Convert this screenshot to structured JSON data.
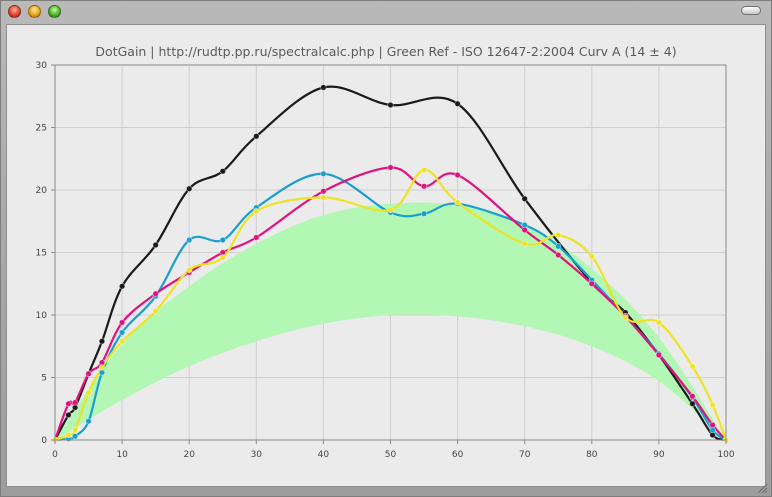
{
  "window": {
    "colors": {
      "close": "#e2452f",
      "minimize": "#e8a51c",
      "zoom": "#4fb52a"
    }
  },
  "chart_data": {
    "type": "line",
    "title": "DotGain | http://rudtp.pp.ru/spectralcalc.php | Green Ref - ISO 12647-2:2004 Curv A (14 ± 4)",
    "xlim": [
      0,
      100
    ],
    "ylim": [
      0,
      30
    ],
    "x_ticks": [
      "0",
      "10",
      "20",
      "30",
      "40",
      "50",
      "60",
      "70",
      "80",
      "90",
      "100"
    ],
    "y_ticks": [
      "0",
      "5",
      "10",
      "15",
      "20",
      "25",
      "30"
    ],
    "grid": true,
    "band": {
      "color": "#b2f7b4",
      "x": [
        0,
        10,
        20,
        30,
        40,
        50,
        60,
        70,
        80,
        90,
        100
      ],
      "lower": [
        0,
        3.2,
        5.9,
        7.9,
        9.3,
        10.0,
        9.9,
        9.1,
        7.5,
        4.7,
        0
      ],
      "upper": [
        0,
        7.7,
        12.3,
        15.7,
        18.0,
        18.9,
        18.8,
        17.3,
        13.7,
        8.2,
        0
      ]
    },
    "series": [
      {
        "color": "#1a1a1a",
        "x": [
          0,
          2,
          3,
          5,
          7,
          10,
          15,
          20,
          25,
          30,
          40,
          50,
          60,
          70,
          80,
          85,
          90,
          95,
          98,
          100
        ],
        "y": [
          0,
          2.0,
          2.6,
          5.3,
          7.9,
          12.3,
          15.6,
          20.1,
          21.5,
          24.3,
          28.2,
          26.8,
          26.9,
          19.3,
          12.6,
          10.2,
          6.8,
          2.9,
          0.4,
          0
        ]
      },
      {
        "color": "#1a9ed0",
        "x": [
          0,
          2,
          3,
          5,
          7,
          10,
          15,
          20,
          25,
          30,
          40,
          50,
          55,
          60,
          70,
          75,
          80,
          85,
          90,
          95,
          98,
          100
        ],
        "y": [
          0,
          0.1,
          0.3,
          1.5,
          5.4,
          8.6,
          11.5,
          16.0,
          16.0,
          18.6,
          21.3,
          18.2,
          18.1,
          18.9,
          17.2,
          15.5,
          12.8,
          9.9,
          6.9,
          3.4,
          0.8,
          0
        ]
      },
      {
        "color": "#e0127e",
        "x": [
          0,
          2,
          3,
          5,
          7,
          10,
          15,
          20,
          25,
          30,
          40,
          50,
          55,
          60,
          70,
          75,
          80,
          85,
          90,
          95,
          98,
          100
        ],
        "y": [
          0,
          2.9,
          3.0,
          5.3,
          6.2,
          9.4,
          11.7,
          13.4,
          15.0,
          16.2,
          19.9,
          21.8,
          20.3,
          21.2,
          16.8,
          14.8,
          12.5,
          9.9,
          6.8,
          3.5,
          1.2,
          0
        ]
      },
      {
        "color": "#ede327",
        "x": [
          0,
          2,
          3,
          5,
          7,
          10,
          15,
          20,
          25,
          30,
          40,
          50,
          55,
          60,
          70,
          75,
          80,
          85,
          90,
          95,
          98,
          100
        ],
        "y": [
          0,
          0.4,
          0.8,
          3.8,
          5.8,
          7.9,
          10.3,
          13.6,
          14.6,
          18.3,
          19.4,
          18.4,
          21.6,
          19.0,
          15.7,
          16.4,
          14.7,
          9.8,
          9.4,
          5.9,
          2.8,
          0
        ]
      }
    ]
  }
}
